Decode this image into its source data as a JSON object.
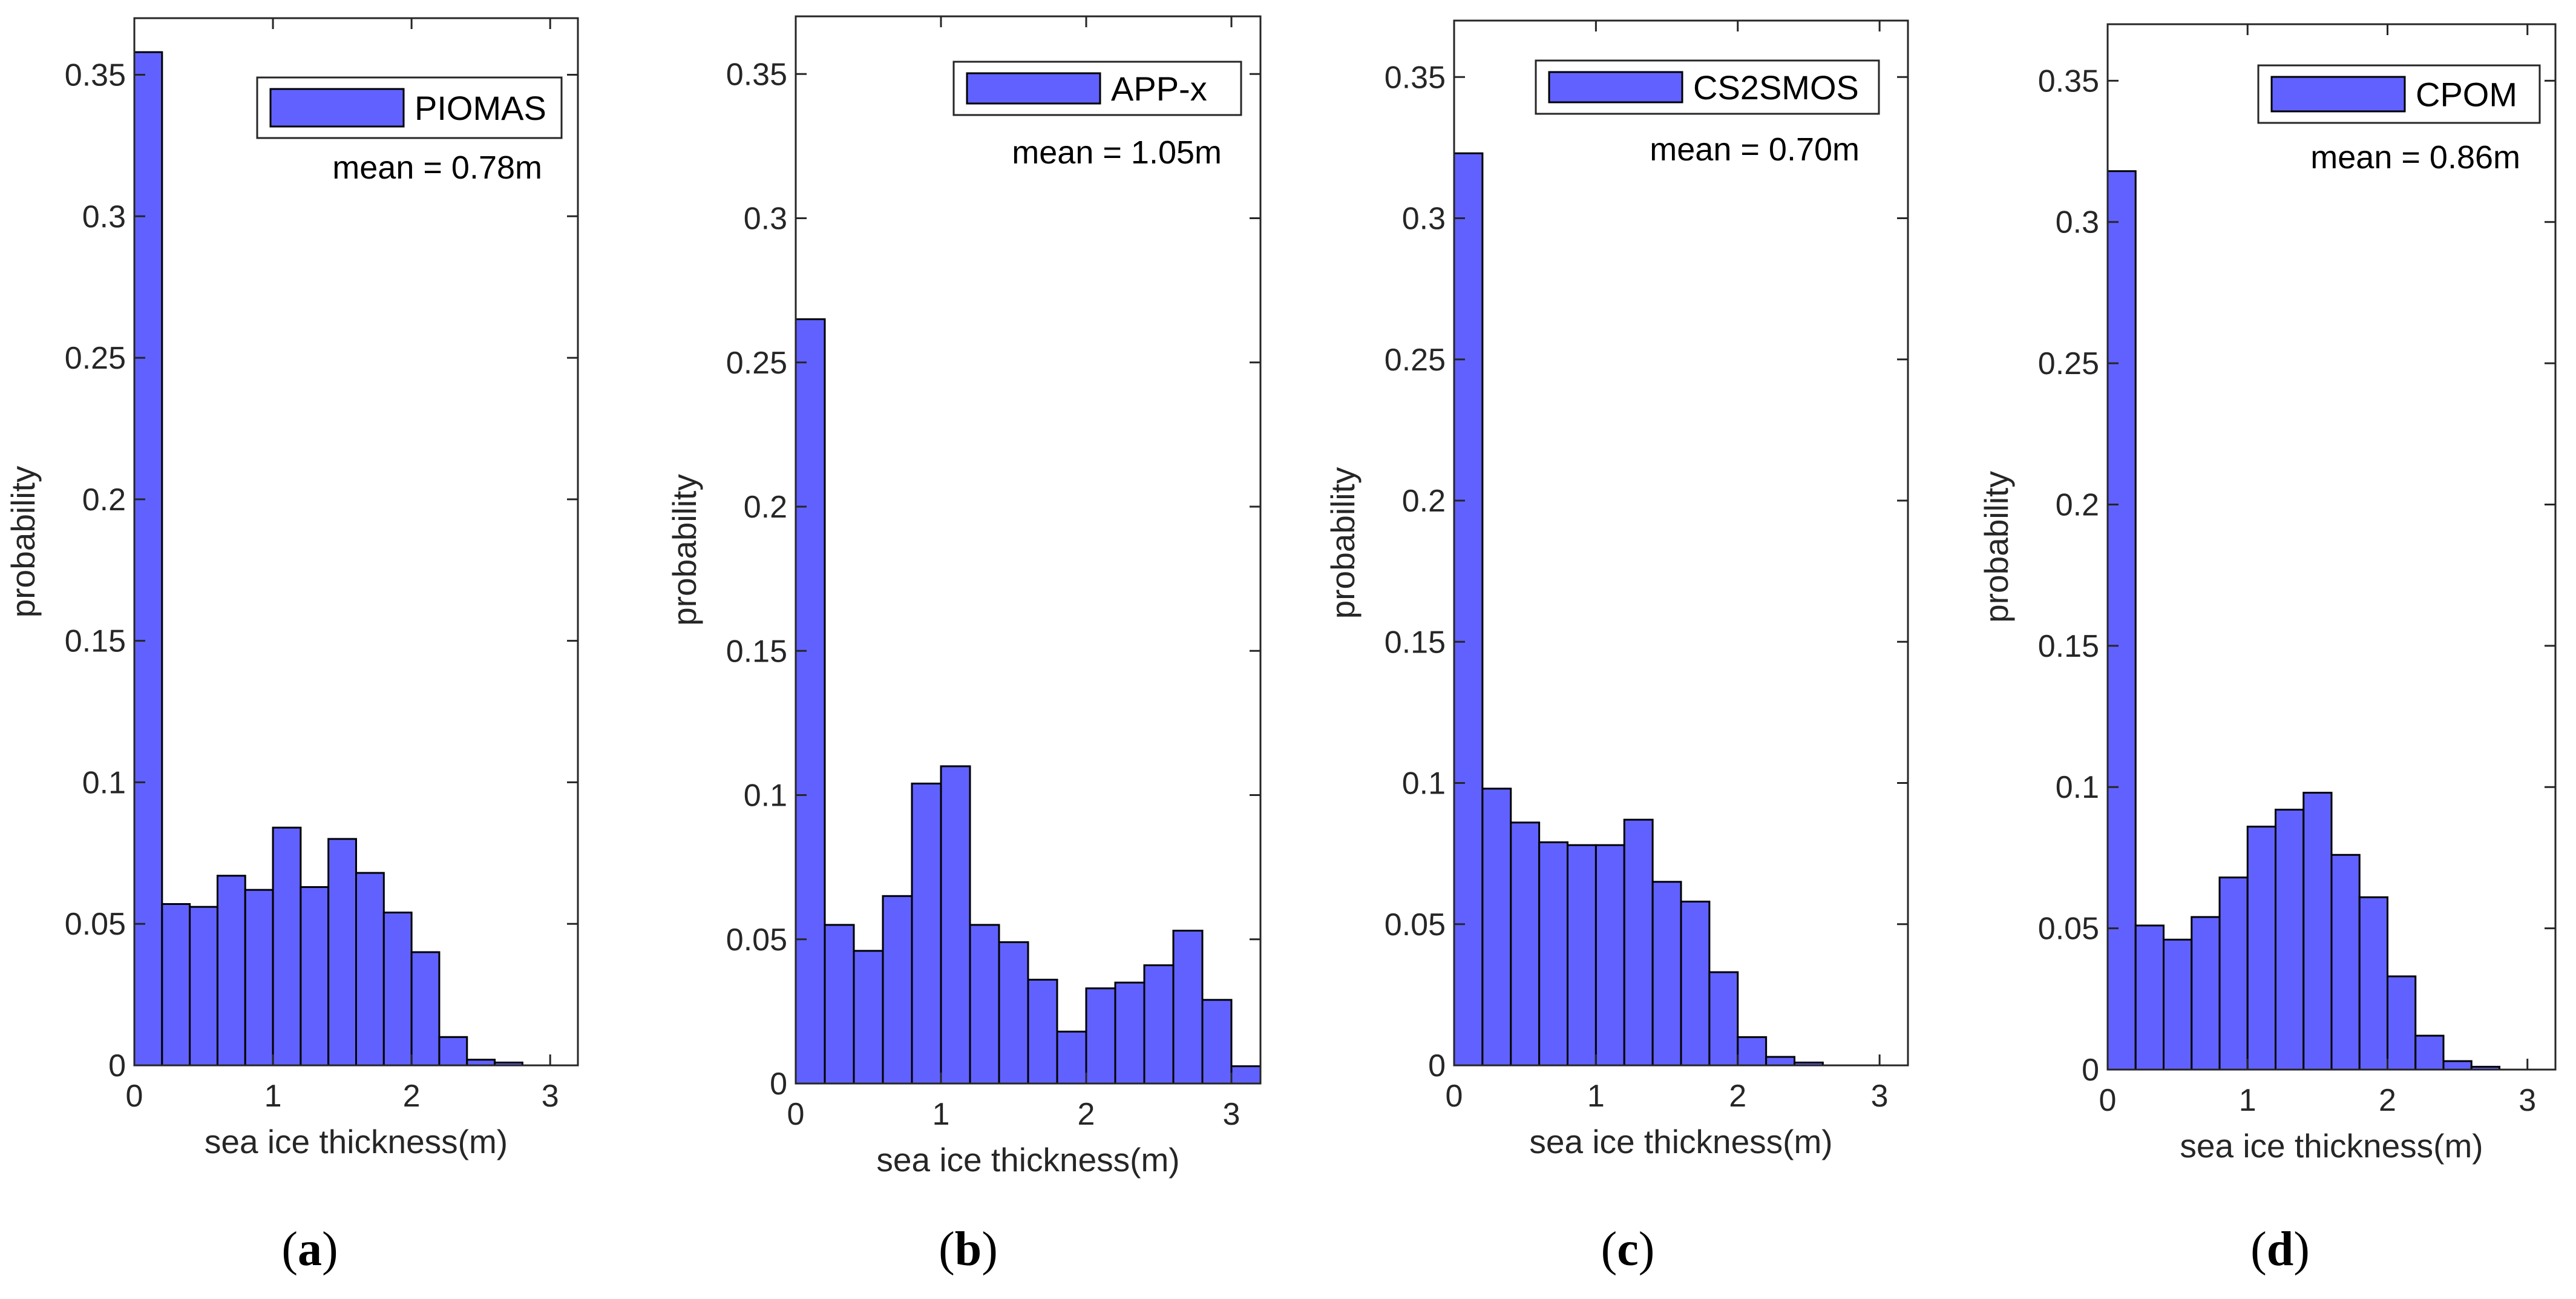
{
  "figure": {
    "panel_labels": [
      {
        "open": "(",
        "letter": "a",
        "close": ")"
      },
      {
        "open": "(",
        "letter": "b",
        "close": ")"
      },
      {
        "open": "(",
        "letter": "c",
        "close": ")"
      },
      {
        "open": "(",
        "letter": "d",
        "close": ")"
      }
    ]
  },
  "chart_data": [
    {
      "type": "bar",
      "legend": "PIOMAS",
      "annotation": "mean = 0.78m",
      "xlabel": "sea ice thickness(m)",
      "ylabel": "probability",
      "xlim": [
        0,
        3.2
      ],
      "ylim": [
        0,
        0.37
      ],
      "xticks": [
        "0",
        "1",
        "2",
        "3"
      ],
      "yticks": [
        "0",
        "0.05",
        "0.1",
        "0.15",
        "0.2",
        "0.25",
        "0.3",
        "0.35"
      ],
      "bin_width": 0.2,
      "bin_starts": [
        0,
        0.2,
        0.4,
        0.6,
        0.8,
        1.0,
        1.2,
        1.4,
        1.6,
        1.8,
        2.0,
        2.2,
        2.4,
        2.6,
        2.8
      ],
      "values": [
        0.358,
        0.057,
        0.056,
        0.067,
        0.062,
        0.084,
        0.063,
        0.08,
        0.068,
        0.054,
        0.04,
        0.01,
        0.002,
        0.001,
        0.0
      ],
      "grid": false,
      "legend_position": "top-right",
      "bar_color": "#6161ff"
    },
    {
      "type": "bar",
      "legend": "APP-x",
      "annotation": "mean = 1.05m",
      "xlabel": "sea ice thickness(m)",
      "ylabel": "probability",
      "xlim": [
        0,
        3.2
      ],
      "ylim": [
        0,
        0.37
      ],
      "xticks": [
        "0",
        "1",
        "2",
        "3"
      ],
      "yticks": [
        "0",
        "0.05",
        "0.1",
        "0.15",
        "0.2",
        "0.25",
        "0.3",
        "0.35"
      ],
      "bin_width": 0.2,
      "bin_starts": [
        0,
        0.2,
        0.4,
        0.6,
        0.8,
        1.0,
        1.2,
        1.4,
        1.6,
        1.8,
        2.0,
        2.2,
        2.4,
        2.6,
        2.8,
        3.0
      ],
      "values": [
        0.265,
        0.055,
        0.046,
        0.065,
        0.104,
        0.11,
        0.055,
        0.049,
        0.036,
        0.018,
        0.033,
        0.035,
        0.041,
        0.053,
        0.029,
        0.006
      ],
      "grid": false,
      "legend_position": "top-right",
      "bar_color": "#6161ff"
    },
    {
      "type": "bar",
      "legend": "CS2SMOS",
      "annotation": "mean = 0.70m",
      "xlabel": "sea ice thickness(m)",
      "ylabel": "probability",
      "xlim": [
        0,
        3.2
      ],
      "ylim": [
        0,
        0.37
      ],
      "xticks": [
        "0",
        "1",
        "2",
        "3"
      ],
      "yticks": [
        "0",
        "0.05",
        "0.1",
        "0.15",
        "0.2",
        "0.25",
        "0.3",
        "0.35"
      ],
      "bin_width": 0.2,
      "bin_starts": [
        0,
        0.2,
        0.4,
        0.6,
        0.8,
        1.0,
        1.2,
        1.4,
        1.6,
        1.8,
        2.0,
        2.2,
        2.4,
        2.6,
        2.8
      ],
      "values": [
        0.323,
        0.098,
        0.086,
        0.079,
        0.078,
        0.078,
        0.087,
        0.065,
        0.058,
        0.033,
        0.01,
        0.003,
        0.001,
        0.0,
        0.0
      ],
      "grid": false,
      "legend_position": "top-right",
      "bar_color": "#6161ff"
    },
    {
      "type": "bar",
      "legend": "CPOM",
      "annotation": "mean = 0.86m",
      "xlabel": "sea ice thickness(m)",
      "ylabel": "probability",
      "xlim": [
        0,
        3.2
      ],
      "ylim": [
        0,
        0.37
      ],
      "xticks": [
        "0",
        "1",
        "2",
        "3"
      ],
      "yticks": [
        "0",
        "0.05",
        "0.1",
        "0.15",
        "0.2",
        "0.25",
        "0.3",
        "0.35"
      ],
      "bin_width": 0.2,
      "bin_starts": [
        0,
        0.2,
        0.4,
        0.6,
        0.8,
        1.0,
        1.2,
        1.4,
        1.6,
        1.8,
        2.0,
        2.2,
        2.4,
        2.6,
        2.8
      ],
      "values": [
        0.318,
        0.051,
        0.046,
        0.054,
        0.068,
        0.086,
        0.092,
        0.098,
        0.076,
        0.061,
        0.033,
        0.012,
        0.003,
        0.001,
        0.0
      ],
      "grid": false,
      "legend_position": "top-right",
      "bar_color": "#6161ff"
    }
  ]
}
